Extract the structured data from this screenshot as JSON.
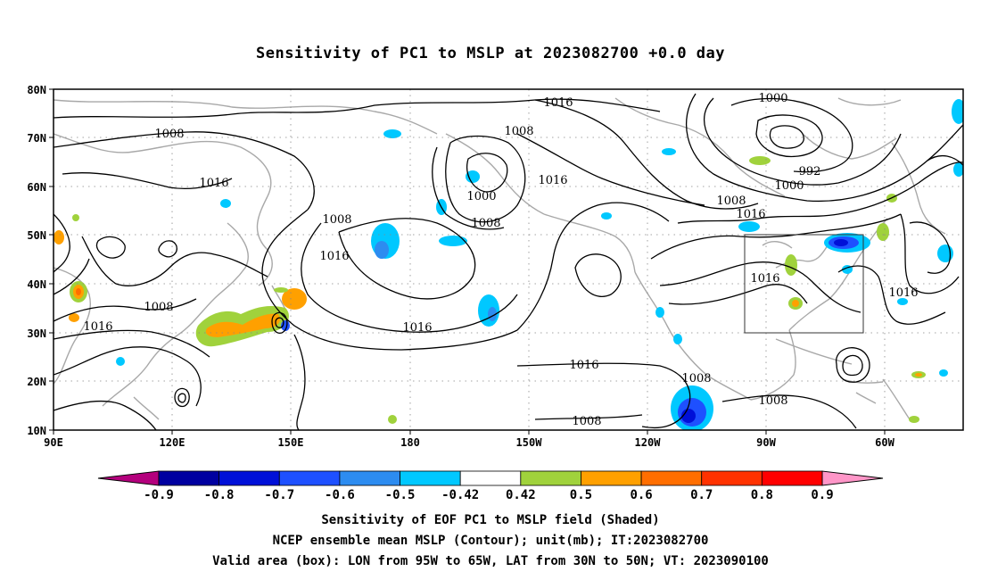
{
  "title": "Sensitivity of PC1 to MSLP at 2023082700 +0.0 day",
  "lat_labels": [
    "80N",
    "70N",
    "60N",
    "50N",
    "40N",
    "30N",
    "20N",
    "10N"
  ],
  "lon_labels": [
    "90E",
    "120E",
    "150E",
    "180",
    "150W",
    "120W",
    "90W",
    "60W"
  ],
  "contour_labels": [
    "1016",
    "1008",
    "1016",
    "1008",
    "1016",
    "1000",
    "1008",
    "1016",
    "1008",
    "1016",
    "1016",
    "1000",
    "992",
    "1000",
    "1008",
    "1016",
    "1016",
    "1016",
    "1008",
    "1016",
    "1016",
    "1008",
    "1008",
    "1008"
  ],
  "colorbar": {
    "labels": [
      "-0.9",
      "-0.8",
      "-0.7",
      "-0.6",
      "-0.5",
      "-0.42",
      "0.42",
      "0.5",
      "0.6",
      "0.7",
      "0.8",
      "0.9"
    ],
    "colors": [
      "#b4007d",
      "#0000a0",
      "#0010d8",
      "#1e50ff",
      "#2d8cf0",
      "#00c8ff",
      "#ffffff",
      "#a0d23c",
      "#ffa000",
      "#ff6e00",
      "#ff3200",
      "#ff0000",
      "#ff96c8"
    ]
  },
  "valid_box": "LON from 95W to 65W, LAT from 30N to 50N",
  "captions": [
    "Sensitivity of EOF PC1 to MSLP field (Shaded)",
    "NCEP ensemble mean MSLP (Contour); unit(mb); IT:2023082700",
    "Valid area (box): LON from 95W to 65W, LAT from 30N to 50N; VT: 2023090100"
  ]
}
